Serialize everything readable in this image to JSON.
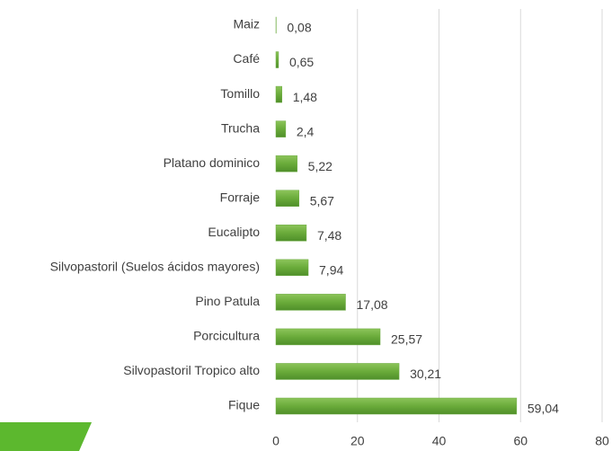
{
  "chart_data": {
    "type": "bar",
    "orientation": "horizontal",
    "categories": [
      "Maiz",
      "Café",
      "Tomillo",
      "Trucha",
      "Platano dominico",
      "Forraje",
      "Eucalipto",
      "Silvopastoril (Suelos ácidos mayores)",
      "Pino Patula",
      "Porcicultura",
      "Silvopastoril Tropico alto",
      "Fique"
    ],
    "values": [
      0.08,
      0.65,
      1.48,
      2.4,
      5.22,
      5.67,
      7.48,
      7.94,
      17.08,
      25.57,
      30.21,
      59.04
    ],
    "value_labels": [
      "0,08",
      "0,65",
      "1,48",
      "2,4",
      "5,22",
      "5,67",
      "7,48",
      "7,94",
      "17,08",
      "25,57",
      "30,21",
      "59,04"
    ],
    "color": "#70ad47",
    "xlim": [
      0,
      80
    ],
    "xticks": [
      0,
      20,
      40,
      60,
      80
    ],
    "grid": true
  }
}
